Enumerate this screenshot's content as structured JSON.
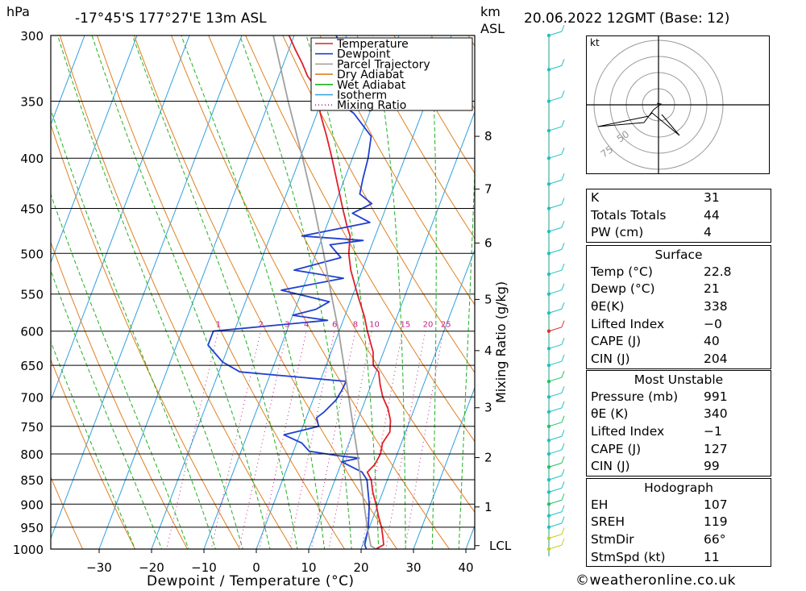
{
  "header": {
    "unit_hpa": "hPa",
    "location": "-17°45'S  177°27'E  13m  ASL",
    "unit_km": "km",
    "unit_asl": "ASL",
    "datetime": "20.06.2022  12GMT  (Base: 12)"
  },
  "chart_data": {
    "type": "line",
    "title": "-17°45'S  177°27'E  13m  ASL",
    "xlabel": "Dewpoint / Temperature (°C)",
    "ylabel": "hPa",
    "right_label": "Mixing Ratio (g/kg)",
    "xlim": [
      -40,
      40
    ],
    "ylim": [
      1000,
      300
    ],
    "pressure_ticks": [
      300,
      350,
      400,
      450,
      500,
      550,
      600,
      650,
      700,
      750,
      800,
      850,
      900,
      950,
      1000
    ],
    "temp_ticks": [
      -30,
      -20,
      -10,
      0,
      10,
      20,
      30,
      40
    ],
    "km_ticks": [
      {
        "label": "8",
        "p": 380
      },
      {
        "label": "7",
        "p": 430
      },
      {
        "label": "6",
        "p": 488
      },
      {
        "label": "5",
        "p": 557
      },
      {
        "label": "4",
        "p": 628
      },
      {
        "label": "3",
        "p": 718
      },
      {
        "label": "2",
        "p": 807
      },
      {
        "label": "1",
        "p": 906
      }
    ],
    "lcl_label": "LCL",
    "lcl_p": 992,
    "mixing_ratio_labels": [
      "1",
      "2",
      "3",
      "4",
      "6",
      "8",
      "10",
      "15",
      "20",
      "25"
    ],
    "mixing_ratio_values": [
      1,
      2,
      3,
      4,
      6,
      8,
      10,
      15,
      20,
      25
    ],
    "legend": [
      "Temperature",
      "Dewpoint",
      "Parcel Trajectory",
      "Dry Adiabat",
      "Wet Adiabat",
      "Isotherm",
      "Mixing Ratio"
    ],
    "colors": {
      "temperature": "#e0202a",
      "dewpoint": "#2040d0",
      "parcel": "#a0a0a0",
      "dry": "#e08020",
      "wet": "#20b020",
      "isotherm": "#30a0e0",
      "mixing": "#c0208a"
    },
    "series": [
      {
        "name": "Temperature",
        "points": [
          [
            1000,
            22.8
          ],
          [
            990,
            24.0
          ],
          [
            970,
            23.2
          ],
          [
            950,
            22.3
          ],
          [
            925,
            20.9
          ],
          [
            900,
            19.6
          ],
          [
            875,
            18.1
          ],
          [
            850,
            16.9
          ],
          [
            835,
            15.6
          ],
          [
            820,
            16.5
          ],
          [
            800,
            16.8
          ],
          [
            780,
            16.4
          ],
          [
            760,
            17.0
          ],
          [
            740,
            16.3
          ],
          [
            720,
            15.0
          ],
          [
            700,
            13.1
          ],
          [
            680,
            11.7
          ],
          [
            660,
            10.5
          ],
          [
            650,
            9.0
          ],
          [
            630,
            8.0
          ],
          [
            600,
            5.4
          ],
          [
            580,
            3.8
          ],
          [
            550,
            0.8
          ],
          [
            520,
            -2.2
          ],
          [
            500,
            -3.8
          ],
          [
            480,
            -4.8
          ],
          [
            470,
            -6.0
          ],
          [
            450,
            -8.2
          ],
          [
            430,
            -10.4
          ],
          [
            400,
            -13.9
          ],
          [
            380,
            -16.5
          ],
          [
            360,
            -19.4
          ],
          [
            350,
            -20.6
          ],
          [
            340,
            -21.8
          ],
          [
            330,
            -24.5
          ],
          [
            320,
            -26.5
          ],
          [
            310,
            -28.8
          ],
          [
            300,
            -31.0
          ]
        ]
      },
      {
        "name": "Dewpoint",
        "points": [
          [
            1000,
            21.0
          ],
          [
            990,
            20.4
          ],
          [
            950,
            19.8
          ],
          [
            900,
            18.3
          ],
          [
            850,
            16.1
          ],
          [
            835,
            14.6
          ],
          [
            815,
            10.0
          ],
          [
            808,
            13.0
          ],
          [
            803,
            8.5
          ],
          [
            795,
            3.0
          ],
          [
            780,
            1.0
          ],
          [
            765,
            -3.0
          ],
          [
            750,
            3.0
          ],
          [
            735,
            2.0
          ],
          [
            725,
            3.0
          ],
          [
            705,
            4.4
          ],
          [
            690,
            4.8
          ],
          [
            675,
            5.0
          ],
          [
            660,
            -16.0
          ],
          [
            645,
            -20.0
          ],
          [
            620,
            -24.0
          ],
          [
            600,
            -24.0
          ],
          [
            585,
            -3.0
          ],
          [
            578,
            -10.0
          ],
          [
            570,
            -6.0
          ],
          [
            560,
            -4.0
          ],
          [
            545,
            -14.0
          ],
          [
            530,
            -3.0
          ],
          [
            520,
            -13.0
          ],
          [
            505,
            -5.0
          ],
          [
            490,
            -8.0
          ],
          [
            485,
            -2.0
          ],
          [
            480,
            -14.0
          ],
          [
            465,
            -2.0
          ],
          [
            455,
            -6.0
          ],
          [
            445,
            -3.0
          ],
          [
            435,
            -6.0
          ],
          [
            420,
            -6.5
          ],
          [
            400,
            -7.0
          ],
          [
            380,
            -8.0
          ],
          [
            360,
            -13.0
          ],
          [
            350,
            -17.0
          ],
          [
            340,
            -16.5
          ],
          [
            320,
            -17.5
          ],
          [
            300,
            -22.0
          ]
        ]
      },
      {
        "name": "Parcel Trajectory",
        "points": [
          [
            1000,
            22.8
          ],
          [
            992,
            21.6
          ],
          [
            950,
            19.6
          ],
          [
            900,
            17.3
          ],
          [
            850,
            14.9
          ],
          [
            800,
            12.4
          ],
          [
            750,
            9.6
          ],
          [
            700,
            6.6
          ],
          [
            650,
            3.4
          ],
          [
            600,
            -0.1
          ],
          [
            550,
            -4.2
          ],
          [
            500,
            -8.6
          ],
          [
            450,
            -13.6
          ],
          [
            400,
            -19.5
          ],
          [
            350,
            -26.4
          ],
          [
            300,
            -34.0
          ]
        ]
      }
    ]
  },
  "hodograph": {
    "unit": "kt",
    "ring_labels": [
      "75",
      "50"
    ]
  },
  "indices": {
    "k_label": "K",
    "k_value": "31",
    "tt_label": "Totals Totals",
    "tt_value": "44",
    "pw_label": "PW (cm)",
    "pw_value": "4"
  },
  "surface": {
    "title": "Surface",
    "temp_label": "Temp (°C)",
    "temp_value": "22.8",
    "dewp_label": "Dewp (°C)",
    "dewp_value": "21",
    "theta_label": "θE(K)",
    "theta_value": "338",
    "li_label": "Lifted Index",
    "li_value": "−0",
    "cape_label": "CAPE (J)",
    "cape_value": "40",
    "cin_label": "CIN (J)",
    "cin_value": "204"
  },
  "most_unstable": {
    "title": "Most Unstable",
    "pressure_label": "Pressure (mb)",
    "pressure_value": "991",
    "theta_label": "θE (K)",
    "theta_value": "340",
    "li_label": "Lifted Index",
    "li_value": "−1",
    "cape_label": "CAPE (J)",
    "cape_value": "127",
    "cin_label": "CIN (J)",
    "cin_value": "99"
  },
  "hodo_table": {
    "title": "Hodograph",
    "eh_label": "EH",
    "eh_value": "107",
    "sreh_label": "SREH",
    "sreh_value": "119",
    "stmdir_label": "StmDir",
    "stmdir_value": "66°",
    "stmspd_label": "StmSpd (kt)",
    "stmspd_value": "11"
  },
  "footer": {
    "copyright": "©weatheronline.co.uk"
  }
}
